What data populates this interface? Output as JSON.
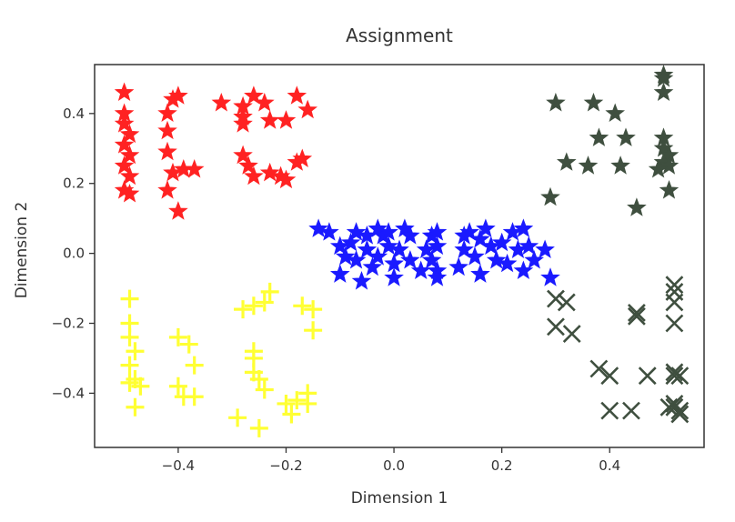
{
  "chart_data": {
    "type": "scatter",
    "title": "Assignment",
    "xlabel": "Dimension 1",
    "ylabel": "Dimension 2",
    "xlim": [
      -0.555,
      0.575
    ],
    "ylim": [
      -0.555,
      0.54
    ],
    "xticks": [
      -0.4,
      -0.2,
      0.0,
      0.2,
      0.4
    ],
    "xtick_labels": [
      "−0.4",
      "−0.2",
      "0.0",
      "0.2",
      "0.4"
    ],
    "yticks": [
      0.4,
      0.2,
      0.0,
      -0.2,
      -0.4
    ],
    "ytick_labels": [
      "0.4",
      "0.2",
      "0.0",
      "−0.2",
      "−0.4"
    ],
    "grid": false,
    "legend": "none",
    "series": [
      {
        "color": "#ff2222",
        "marker": "star",
        "points": [
          [
            -0.5,
            0.46
          ],
          [
            -0.5,
            0.4
          ],
          [
            -0.5,
            0.37
          ],
          [
            -0.49,
            0.34
          ],
          [
            -0.5,
            0.31
          ],
          [
            -0.49,
            0.28
          ],
          [
            -0.5,
            0.25
          ],
          [
            -0.49,
            0.22
          ],
          [
            -0.5,
            0.18
          ],
          [
            -0.49,
            0.17
          ],
          [
            -0.41,
            0.44
          ],
          [
            -0.4,
            0.45
          ],
          [
            -0.42,
            0.4
          ],
          [
            -0.42,
            0.35
          ],
          [
            -0.42,
            0.29
          ],
          [
            -0.41,
            0.23
          ],
          [
            -0.39,
            0.24
          ],
          [
            -0.42,
            0.18
          ],
          [
            -0.4,
            0.12
          ],
          [
            -0.37,
            0.24
          ],
          [
            -0.32,
            0.43
          ],
          [
            -0.28,
            0.42
          ],
          [
            -0.28,
            0.39
          ],
          [
            -0.28,
            0.37
          ],
          [
            -0.28,
            0.28
          ],
          [
            -0.27,
            0.25
          ],
          [
            -0.26,
            0.22
          ],
          [
            -0.26,
            0.45
          ],
          [
            -0.24,
            0.43
          ],
          [
            -0.23,
            0.38
          ],
          [
            -0.2,
            0.38
          ],
          [
            -0.23,
            0.23
          ],
          [
            -0.21,
            0.22
          ],
          [
            -0.18,
            0.26
          ],
          [
            -0.17,
            0.27
          ],
          [
            -0.16,
            0.41
          ],
          [
            -0.18,
            0.45
          ],
          [
            -0.2,
            0.21
          ]
        ]
      },
      {
        "color": "#1a1aff",
        "marker": "star",
        "points": [
          [
            -0.14,
            0.07
          ],
          [
            -0.12,
            0.06
          ],
          [
            -0.1,
            0.02
          ],
          [
            -0.09,
            -0.01
          ],
          [
            -0.1,
            -0.06
          ],
          [
            -0.08,
            0.03
          ],
          [
            -0.07,
            -0.02
          ],
          [
            -0.07,
            0.06
          ],
          [
            -0.05,
            0.05
          ],
          [
            -0.05,
            0.01
          ],
          [
            -0.04,
            -0.04
          ],
          [
            -0.06,
            -0.08
          ],
          [
            -0.03,
            0.07
          ],
          [
            -0.02,
            0.05
          ],
          [
            -0.03,
            -0.01
          ],
          [
            -0.01,
            0.02
          ],
          [
            0.0,
            -0.03
          ],
          [
            0.0,
            -0.07
          ],
          [
            -0.01,
            0.06
          ],
          [
            0.01,
            0.01
          ],
          [
            0.02,
            0.07
          ],
          [
            0.03,
            0.05
          ],
          [
            0.03,
            -0.02
          ],
          [
            0.05,
            -0.05
          ],
          [
            0.06,
            0.01
          ],
          [
            0.07,
            0.05
          ],
          [
            0.08,
            0.06
          ],
          [
            0.08,
            0.02
          ],
          [
            0.07,
            -0.02
          ],
          [
            0.08,
            -0.05
          ],
          [
            0.08,
            -0.07
          ],
          [
            0.13,
            0.05
          ],
          [
            0.13,
            0.01
          ],
          [
            0.12,
            -0.04
          ],
          [
            0.14,
            0.06
          ],
          [
            0.15,
            -0.01
          ],
          [
            0.16,
            0.04
          ],
          [
            0.16,
            -0.06
          ],
          [
            0.17,
            0.07
          ],
          [
            0.18,
            0.02
          ],
          [
            0.19,
            -0.02
          ],
          [
            0.2,
            0.03
          ],
          [
            0.21,
            -0.03
          ],
          [
            0.22,
            0.06
          ],
          [
            0.23,
            0.01
          ],
          [
            0.24,
            -0.05
          ],
          [
            0.24,
            0.07
          ],
          [
            0.25,
            0.02
          ],
          [
            0.26,
            -0.02
          ],
          [
            0.28,
            0.01
          ],
          [
            0.29,
            -0.07
          ]
        ]
      },
      {
        "color": "#3f4f3f",
        "marker": "star",
        "points": [
          [
            0.3,
            0.43
          ],
          [
            0.37,
            0.43
          ],
          [
            0.41,
            0.4
          ],
          [
            0.38,
            0.33
          ],
          [
            0.43,
            0.33
          ],
          [
            0.32,
            0.26
          ],
          [
            0.36,
            0.25
          ],
          [
            0.42,
            0.25
          ],
          [
            0.29,
            0.16
          ],
          [
            0.45,
            0.13
          ],
          [
            0.5,
            0.51
          ],
          [
            0.5,
            0.5
          ],
          [
            0.5,
            0.46
          ],
          [
            0.5,
            0.33
          ],
          [
            0.5,
            0.3
          ],
          [
            0.51,
            0.28
          ],
          [
            0.5,
            0.26
          ],
          [
            0.51,
            0.25
          ],
          [
            0.49,
            0.24
          ],
          [
            0.51,
            0.18
          ]
        ]
      },
      {
        "color": "#ffff33",
        "marker": "plus",
        "points": [
          [
            -0.49,
            -0.13
          ],
          [
            -0.49,
            -0.2
          ],
          [
            -0.49,
            -0.24
          ],
          [
            -0.48,
            -0.28
          ],
          [
            -0.49,
            -0.32
          ],
          [
            -0.48,
            -0.36
          ],
          [
            -0.49,
            -0.37
          ],
          [
            -0.47,
            -0.38
          ],
          [
            -0.48,
            -0.44
          ],
          [
            -0.4,
            -0.24
          ],
          [
            -0.38,
            -0.26
          ],
          [
            -0.37,
            -0.32
          ],
          [
            -0.4,
            -0.38
          ],
          [
            -0.39,
            -0.41
          ],
          [
            -0.37,
            -0.41
          ],
          [
            -0.28,
            -0.16
          ],
          [
            -0.26,
            -0.15
          ],
          [
            -0.24,
            -0.14
          ],
          [
            -0.23,
            -0.11
          ],
          [
            -0.26,
            -0.3
          ],
          [
            -0.26,
            -0.34
          ],
          [
            -0.25,
            -0.36
          ],
          [
            -0.26,
            -0.28
          ],
          [
            -0.24,
            -0.39
          ],
          [
            -0.29,
            -0.47
          ],
          [
            -0.25,
            -0.5
          ],
          [
            -0.2,
            -0.43
          ],
          [
            -0.19,
            -0.46
          ],
          [
            -0.18,
            -0.42
          ],
          [
            -0.17,
            -0.15
          ],
          [
            -0.15,
            -0.16
          ],
          [
            -0.15,
            -0.22
          ],
          [
            -0.16,
            -0.4
          ],
          [
            -0.16,
            -0.43
          ]
        ]
      },
      {
        "color": "#3f4f3f",
        "marker": "x",
        "points": [
          [
            0.3,
            -0.13
          ],
          [
            0.3,
            -0.21
          ],
          [
            0.32,
            -0.14
          ],
          [
            0.33,
            -0.23
          ],
          [
            0.38,
            -0.33
          ],
          [
            0.4,
            -0.35
          ],
          [
            0.4,
            -0.45
          ],
          [
            0.44,
            -0.45
          ],
          [
            0.45,
            -0.18
          ],
          [
            0.45,
            -0.17
          ],
          [
            0.47,
            -0.35
          ],
          [
            0.52,
            -0.09
          ],
          [
            0.52,
            -0.11
          ],
          [
            0.52,
            -0.14
          ],
          [
            0.52,
            -0.2
          ],
          [
            0.52,
            -0.34
          ],
          [
            0.52,
            -0.35
          ],
          [
            0.53,
            -0.35
          ],
          [
            0.52,
            -0.43
          ],
          [
            0.52,
            -0.44
          ],
          [
            0.53,
            -0.46
          ],
          [
            0.53,
            -0.45
          ],
          [
            0.51,
            -0.44
          ]
        ]
      }
    ]
  }
}
